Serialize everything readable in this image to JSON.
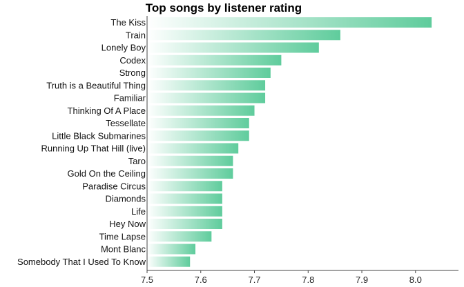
{
  "chart_data": {
    "type": "bar",
    "orientation": "horizontal",
    "title": "Top songs by listener rating",
    "xlabel": "",
    "ylabel": "",
    "categories": [
      "The Kiss",
      "Train",
      "Lonely Boy",
      "Codex",
      "Strong",
      "Truth is a Beautiful Thing",
      "Familiar",
      "Thinking Of A Place",
      "Tessellate",
      "Little Black Submarines",
      "Running Up That Hill (live)",
      "Taro",
      "Gold On the Ceiling",
      "Paradise Circus",
      "Diamonds",
      "Life",
      "Hey Now",
      "Time Lapse",
      "Mont Blanc",
      "Somebody That I Used To Know"
    ],
    "values": [
      8.03,
      7.86,
      7.82,
      7.75,
      7.73,
      7.72,
      7.72,
      7.7,
      7.69,
      7.69,
      7.67,
      7.66,
      7.66,
      7.64,
      7.64,
      7.64,
      7.64,
      7.62,
      7.59,
      7.58
    ],
    "xlim": [
      7.5,
      8.08
    ],
    "xticks": [
      "7.5",
      "7.6",
      "7.7",
      "7.8",
      "7.9",
      "8.0"
    ],
    "grid": false,
    "bar_gradient": [
      "#ffffff",
      "#5fcc9c"
    ]
  }
}
